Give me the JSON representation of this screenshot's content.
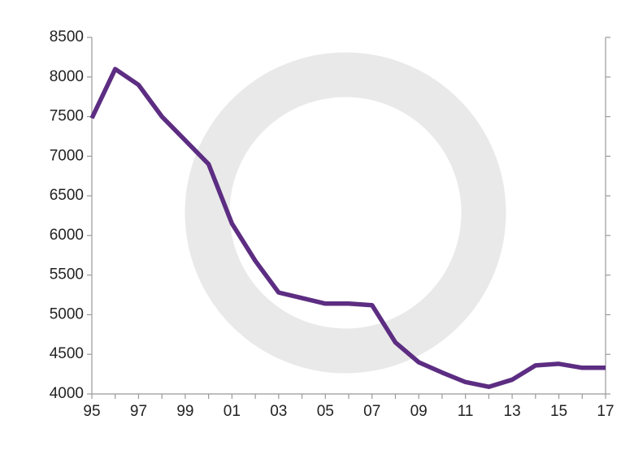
{
  "chart_data": {
    "type": "line",
    "categories": [
      "95",
      null,
      "97",
      null,
      "99",
      null,
      "01",
      null,
      "03",
      null,
      "05",
      null,
      "07",
      null,
      "09",
      null,
      "11",
      null,
      "13",
      null,
      "15",
      null,
      "17"
    ],
    "values": [
      7480,
      8100,
      7900,
      7500,
      7200,
      6900,
      6150,
      5680,
      5280,
      5210,
      5140,
      5140,
      5120,
      4650,
      4400,
      4270,
      4150,
      4090,
      4180,
      4360,
      4380,
      4330,
      4330
    ],
    "color": "#5c2d82",
    "ylim": [
      4000,
      8500
    ],
    "yticks": [
      4000,
      4500,
      5000,
      5500,
      6000,
      6500,
      7000,
      7500,
      8000,
      8500
    ]
  }
}
